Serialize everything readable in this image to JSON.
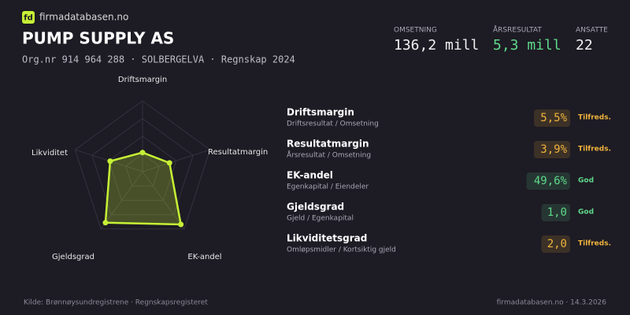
{
  "header": {
    "logo": "fd",
    "brand": "firmadatabasen.no",
    "company": "PUMP SUPPLY AS",
    "meta": "Org.nr 914 964 288  ·  SOLBERGELVA  ·  Regnskap 2024"
  },
  "stats": [
    {
      "label": "OMSETNING",
      "value": "136,2 mill",
      "color": "#f2f2f2"
    },
    {
      "label": "ÅRSRESULTAT",
      "value": "5,3 mill",
      "color": "#5fd98a"
    },
    {
      "label": "ANSATTE",
      "value": "22",
      "color": "#f2f2f2"
    }
  ],
  "chart_data": {
    "type": "radar",
    "categories": [
      "Driftsmargin",
      "Resultatmargin",
      "EK-andel",
      "Gjeldsgrad",
      "Likviditet"
    ],
    "values": [
      27,
      40,
      92,
      89,
      48
    ],
    "ylim": [
      0,
      100
    ],
    "color": "#c6f135"
  },
  "metrics": [
    {
      "name": "Driftsmargin",
      "formula": "Driftsresultat / Omsetning",
      "value": "5,5%",
      "rating": "Tilfreds.",
      "color": "#f0b43c"
    },
    {
      "name": "Resultatmargin",
      "formula": "Årsresultat / Omsetning",
      "value": "3,9%",
      "rating": "Tilfreds.",
      "color": "#f0b43c"
    },
    {
      "name": "EK-andel",
      "formula": "Egenkapital / Eiendeler",
      "value": "49,6%",
      "rating": "God",
      "color": "#5fd98a"
    },
    {
      "name": "Gjeldsgrad",
      "formula": "Gjeld / Egenkapital",
      "value": "1,0",
      "rating": "God",
      "color": "#5fd98a"
    },
    {
      "name": "Likviditetsgrad",
      "formula": "Omløpsmidler / Kortsiktig gjeld",
      "value": "2,0",
      "rating": "Tilfreds.",
      "color": "#f0b43c"
    }
  ],
  "footer": {
    "source": "Kilde: Brønnøysundregistrene · Regnskapsregisteret",
    "site": "firmadatabasen.no · 14.3.2026"
  }
}
